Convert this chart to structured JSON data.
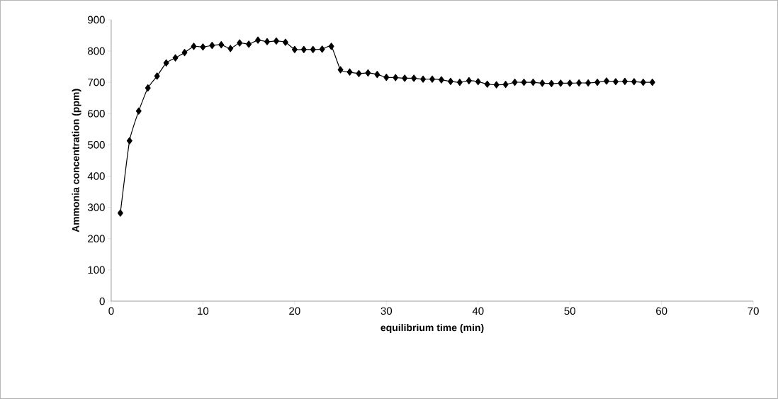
{
  "chart_data": {
    "type": "line",
    "xlabel": "equilibrium time (min)",
    "ylabel": "Ammonia concentration (ppm)",
    "x": [
      1,
      2,
      3,
      4,
      5,
      6,
      7,
      8,
      9,
      10,
      11,
      12,
      13,
      14,
      15,
      16,
      17,
      18,
      19,
      20,
      21,
      22,
      23,
      24,
      25,
      26,
      27,
      28,
      29,
      30,
      31,
      32,
      33,
      34,
      35,
      36,
      37,
      38,
      39,
      40,
      41,
      42,
      43,
      44,
      45,
      46,
      47,
      48,
      49,
      50,
      51,
      52,
      53,
      54,
      55,
      56,
      57,
      58,
      59
    ],
    "series": [
      {
        "color": "#000000",
        "values": [
          282,
          513,
          608,
          682,
          720,
          762,
          778,
          795,
          815,
          813,
          818,
          820,
          808,
          826,
          822,
          835,
          830,
          832,
          828,
          805,
          805,
          805,
          806,
          815,
          740,
          733,
          728,
          730,
          725,
          716,
          715,
          713,
          713,
          710,
          710,
          708,
          703,
          700,
          705,
          702,
          694,
          692,
          693,
          700,
          700,
          700,
          697,
          696,
          697,
          697,
          698,
          698,
          700,
          704,
          702,
          703,
          702,
          700,
          700
        ]
      }
    ],
    "xlim": [
      0,
      70
    ],
    "xticks": [
      0,
      10,
      20,
      30,
      40,
      50,
      60,
      70
    ],
    "ylim": [
      0,
      900
    ],
    "yticks": [
      0,
      100,
      200,
      300,
      400,
      500,
      600,
      700,
      800,
      900
    ],
    "grid": false,
    "marker": "diamond",
    "line_style": "solid"
  }
}
